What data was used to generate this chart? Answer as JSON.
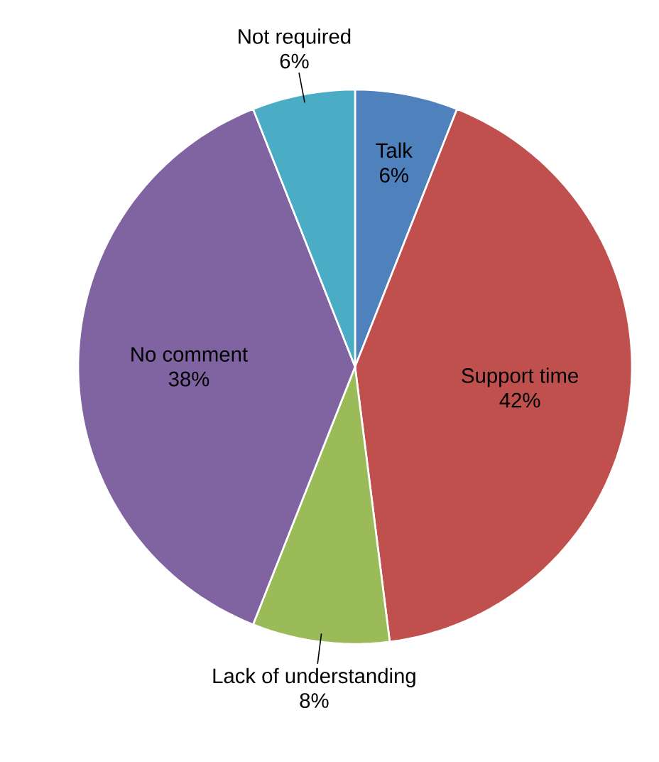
{
  "chart_data": {
    "type": "pie",
    "categories": [
      "Talk",
      "Support time",
      "Lack of understanding",
      "No comment",
      "Not required"
    ],
    "values": [
      6,
      42,
      8,
      38,
      6
    ],
    "value_labels": [
      "6%",
      "42%",
      "8%",
      "38%",
      "6%"
    ],
    "colors": [
      "#4f81bd",
      "#c0504d",
      "#9bbb59",
      "#8064a2",
      "#4bacc6"
    ]
  }
}
